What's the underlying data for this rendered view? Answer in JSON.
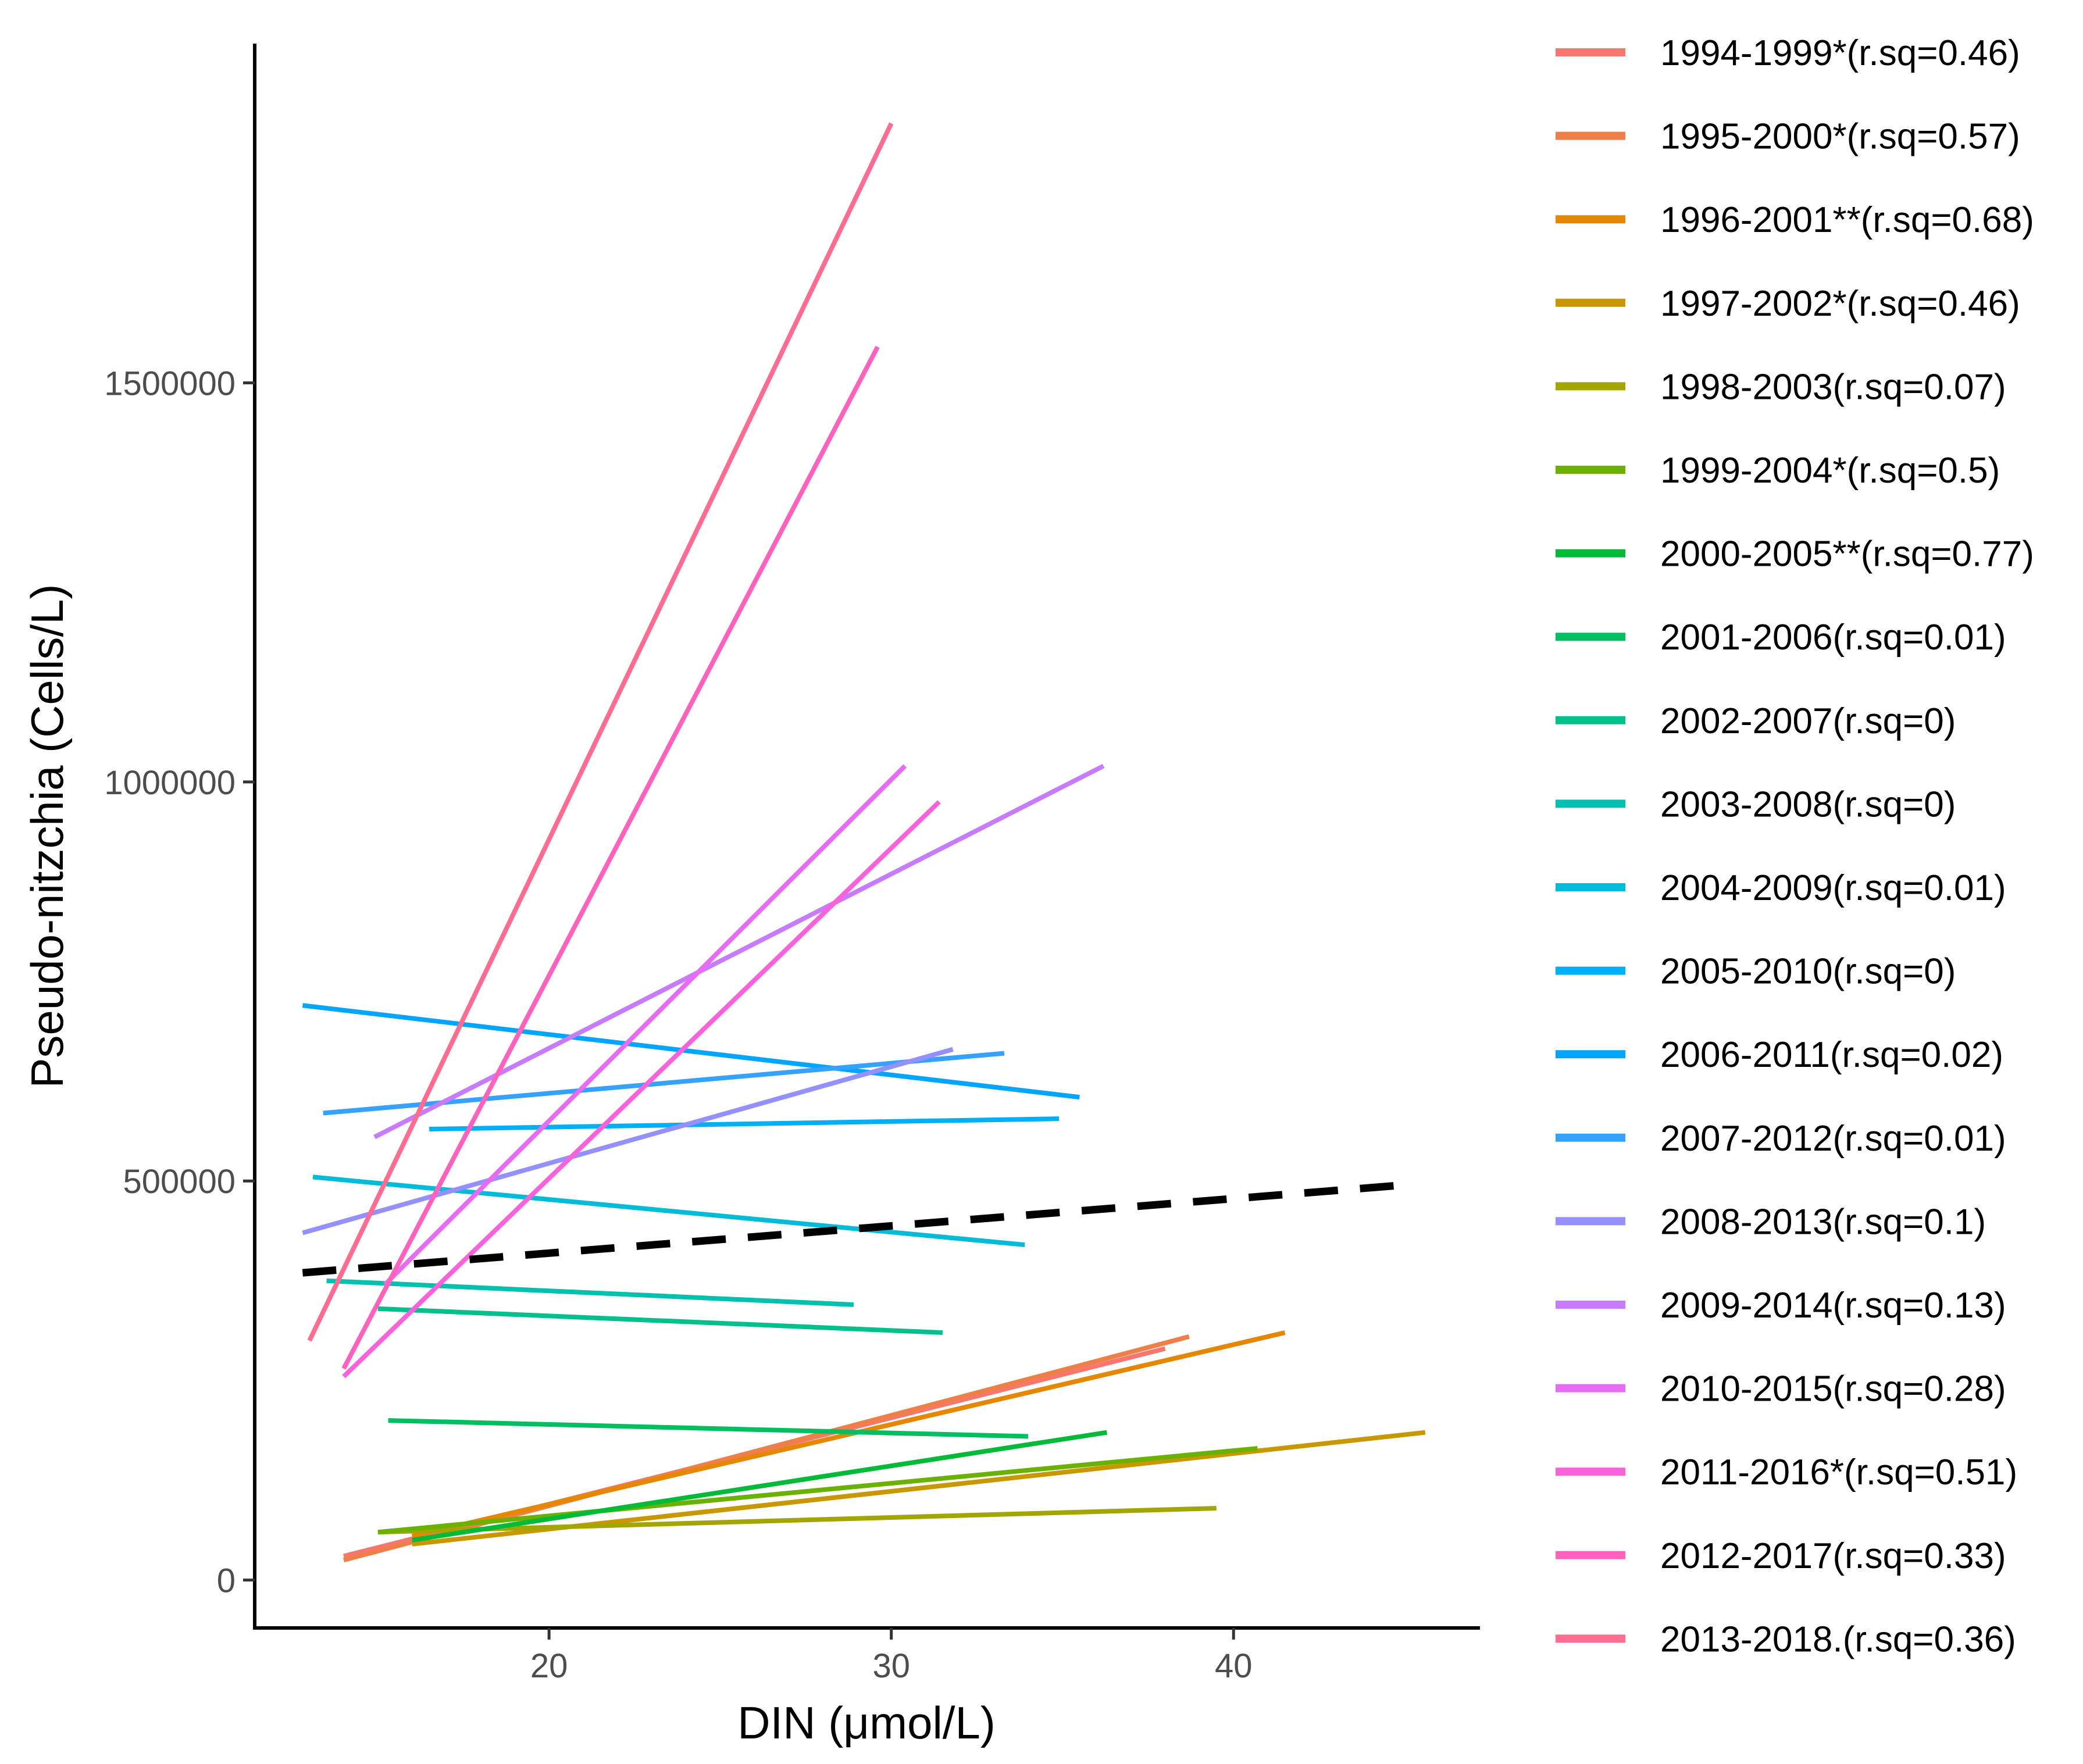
{
  "chart_data": {
    "type": "line",
    "title": "",
    "xlabel": "DIN (μmol/L)",
    "ylabel": "Pseudo-nitzchia (Cells/L)",
    "xlim": [
      11.4,
      47.2
    ],
    "ylim": [
      -60000,
      1925000
    ],
    "x_ticks": [
      20,
      30,
      40
    ],
    "x_tick_labels": [
      "20",
      "30",
      "40"
    ],
    "y_ticks": [
      0,
      500000,
      1000000,
      1500000
    ],
    "y_tick_labels": [
      "0",
      "500000",
      "1000000",
      "1500000"
    ],
    "grid": false,
    "legend_position": "right",
    "series": [
      {
        "name": "1994-1999*(r.sq=0.46)",
        "color": "#F8766D",
        "x": [
          14.0,
          38.0
        ],
        "y": [
          30000,
          290000
        ]
      },
      {
        "name": "1995-2000*(r.sq=0.57)",
        "color": "#EF7F49",
        "x": [
          14.0,
          38.7
        ],
        "y": [
          25000,
          305000
        ]
      },
      {
        "name": "1996-2001**(r.sq=0.68)",
        "color": "#E58700",
        "x": [
          16.0,
          41.5
        ],
        "y": [
          55000,
          310000
        ]
      },
      {
        "name": "1997-2002*(r.sq=0.46)",
        "color": "#C99800",
        "x": [
          16.0,
          45.6
        ],
        "y": [
          45000,
          185000
        ]
      },
      {
        "name": "1998-2003(r.sq=0.07)",
        "color": "#A3A500",
        "x": [
          15.0,
          39.5
        ],
        "y": [
          60000,
          90000
        ]
      },
      {
        "name": "1999-2004*(r.sq=0.5)",
        "color": "#6BB100",
        "x": [
          15.0,
          40.7
        ],
        "y": [
          60000,
          165000
        ]
      },
      {
        "name": "2000-2005**(r.sq=0.77)",
        "color": "#00BA38",
        "x": [
          16.0,
          36.3
        ],
        "y": [
          50000,
          185000
        ]
      },
      {
        "name": "2001-2006(r.sq=0.01)",
        "color": "#00BF60",
        "x": [
          15.3,
          34.0
        ],
        "y": [
          200000,
          180000
        ]
      },
      {
        "name": "2002-2007(r.sq=0)",
        "color": "#00C08B",
        "x": [
          15.0,
          31.5
        ],
        "y": [
          340000,
          310000
        ]
      },
      {
        "name": "2003-2008(r.sq=0)",
        "color": "#00C0AF",
        "x": [
          13.5,
          28.9
        ],
        "y": [
          375000,
          345000
        ]
      },
      {
        "name": "2004-2009(r.sq=0.01)",
        "color": "#00BCD8",
        "x": [
          13.1,
          33.9
        ],
        "y": [
          505000,
          420000
        ]
      },
      {
        "name": "2005-2010(r.sq=0)",
        "color": "#00B0F6",
        "x": [
          16.5,
          34.9
        ],
        "y": [
          565000,
          578000
        ]
      },
      {
        "name": "2006-2011(r.sq=0.02)",
        "color": "#00A5FF",
        "x": [
          12.8,
          35.5
        ],
        "y": [
          720000,
          605000
        ]
      },
      {
        "name": "2007-2012(r.sq=0.01)",
        "color": "#35A2FF",
        "x": [
          13.4,
          33.3
        ],
        "y": [
          585000,
          660000
        ]
      },
      {
        "name": "2008-2013(r.sq=0.1)",
        "color": "#9590FF",
        "x": [
          12.8,
          31.8
        ],
        "y": [
          435000,
          665000
        ]
      },
      {
        "name": "2009-2014(r.sq=0.13)",
        "color": "#C77CFF",
        "x": [
          14.9,
          36.2
        ],
        "y": [
          555000,
          1020000
        ]
      },
      {
        "name": "2010-2015(r.sq=0.28)",
        "color": "#E76BF3",
        "x": [
          15.2,
          30.4
        ],
        "y": [
          370000,
          1020000
        ]
      },
      {
        "name": "2011-2016*(r.sq=0.51)",
        "color": "#FA62DB",
        "x": [
          14.0,
          31.4
        ],
        "y": [
          255000,
          975000
        ]
      },
      {
        "name": "2012-2017(r.sq=0.33)",
        "color": "#FF62BC",
        "x": [
          14.0,
          29.6
        ],
        "y": [
          265000,
          1545000
        ]
      },
      {
        "name": "2013-2018.(r.sq=0.36)",
        "color": "#FF6C91",
        "x": [
          13.0,
          30.0
        ],
        "y": [
          300000,
          1825000
        ]
      }
    ],
    "reference_line": {
      "style": "dashed",
      "color": "#000000",
      "x": [
        12.8,
        45.0
      ],
      "y": [
        385000,
        495000
      ]
    }
  }
}
